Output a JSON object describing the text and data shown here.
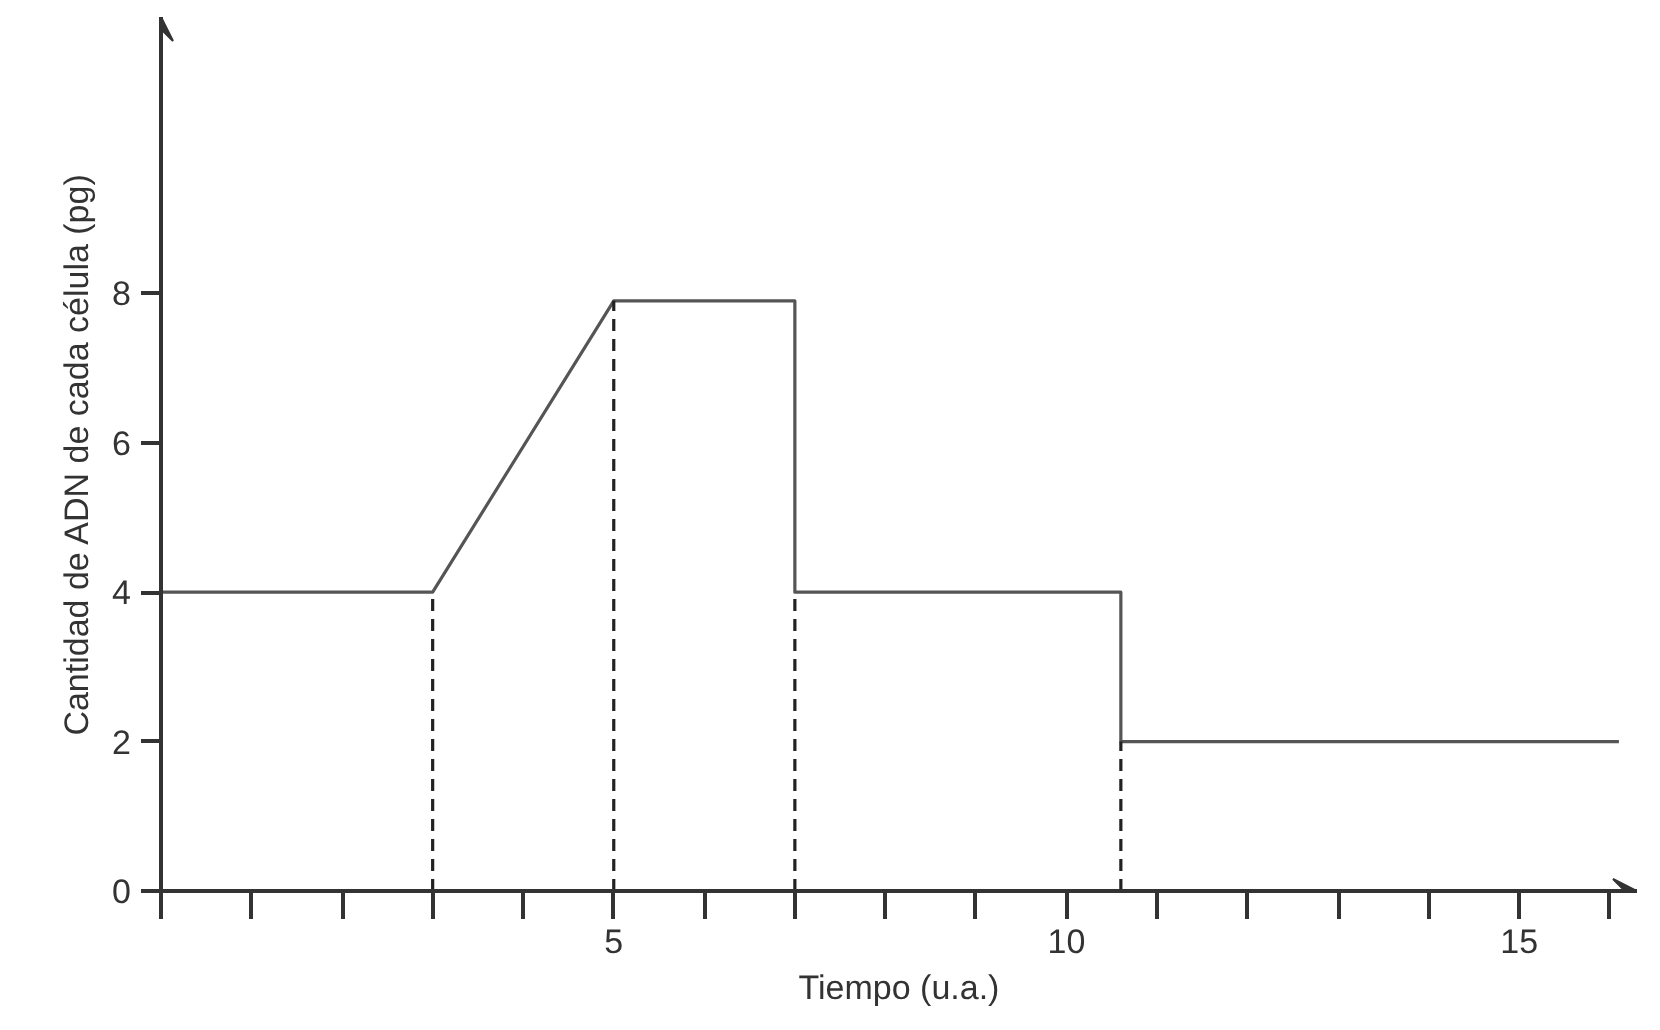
{
  "chart_data": {
    "type": "line",
    "xlabel": "Tiempo (u.a.)",
    "ylabel": "Cantidad de ADN de cada célula (pg)",
    "xlim": [
      0,
      16.3
    ],
    "ylim": [
      0,
      11.7
    ],
    "xticks": [
      {
        "value": 0,
        "label": null
      },
      {
        "value": 1,
        "label": null
      },
      {
        "value": 2,
        "label": null
      },
      {
        "value": 3,
        "label": null
      },
      {
        "value": 4,
        "label": null
      },
      5,
      {
        "value": 6,
        "label": null
      },
      {
        "value": 7,
        "label": null
      },
      {
        "value": 8,
        "label": null
      },
      {
        "value": 9,
        "label": null
      },
      10,
      {
        "value": 11,
        "label": null
      },
      {
        "value": 12,
        "label": null
      },
      {
        "value": 13,
        "label": null
      },
      {
        "value": 14,
        "label": null
      },
      15,
      {
        "value": 16,
        "label": null
      }
    ],
    "yticks": [
      0,
      2,
      4,
      6,
      8
    ],
    "grid": false,
    "series": [
      {
        "color": "#555555",
        "x": [
          0,
          3,
          5,
          7,
          7,
          10.6,
          10.6,
          16.1
        ],
        "values": [
          4,
          4,
          7.9,
          7.9,
          4,
          4,
          2,
          2
        ],
        "line_style": "solid"
      },
      {
        "color": "#222222",
        "x": [
          3,
          3
        ],
        "values": [
          0,
          4
        ],
        "line_style": "dashed"
      },
      {
        "color": "#222222",
        "x": [
          5,
          5
        ],
        "values": [
          0,
          7.9
        ],
        "line_style": "dashed"
      },
      {
        "color": "#222222",
        "x": [
          7,
          7
        ],
        "values": [
          0,
          4
        ],
        "line_style": "dashed"
      },
      {
        "color": "#222222",
        "x": [
          10.6,
          10.6
        ],
        "values": [
          0,
          2
        ],
        "line_style": "dashed"
      }
    ]
  }
}
